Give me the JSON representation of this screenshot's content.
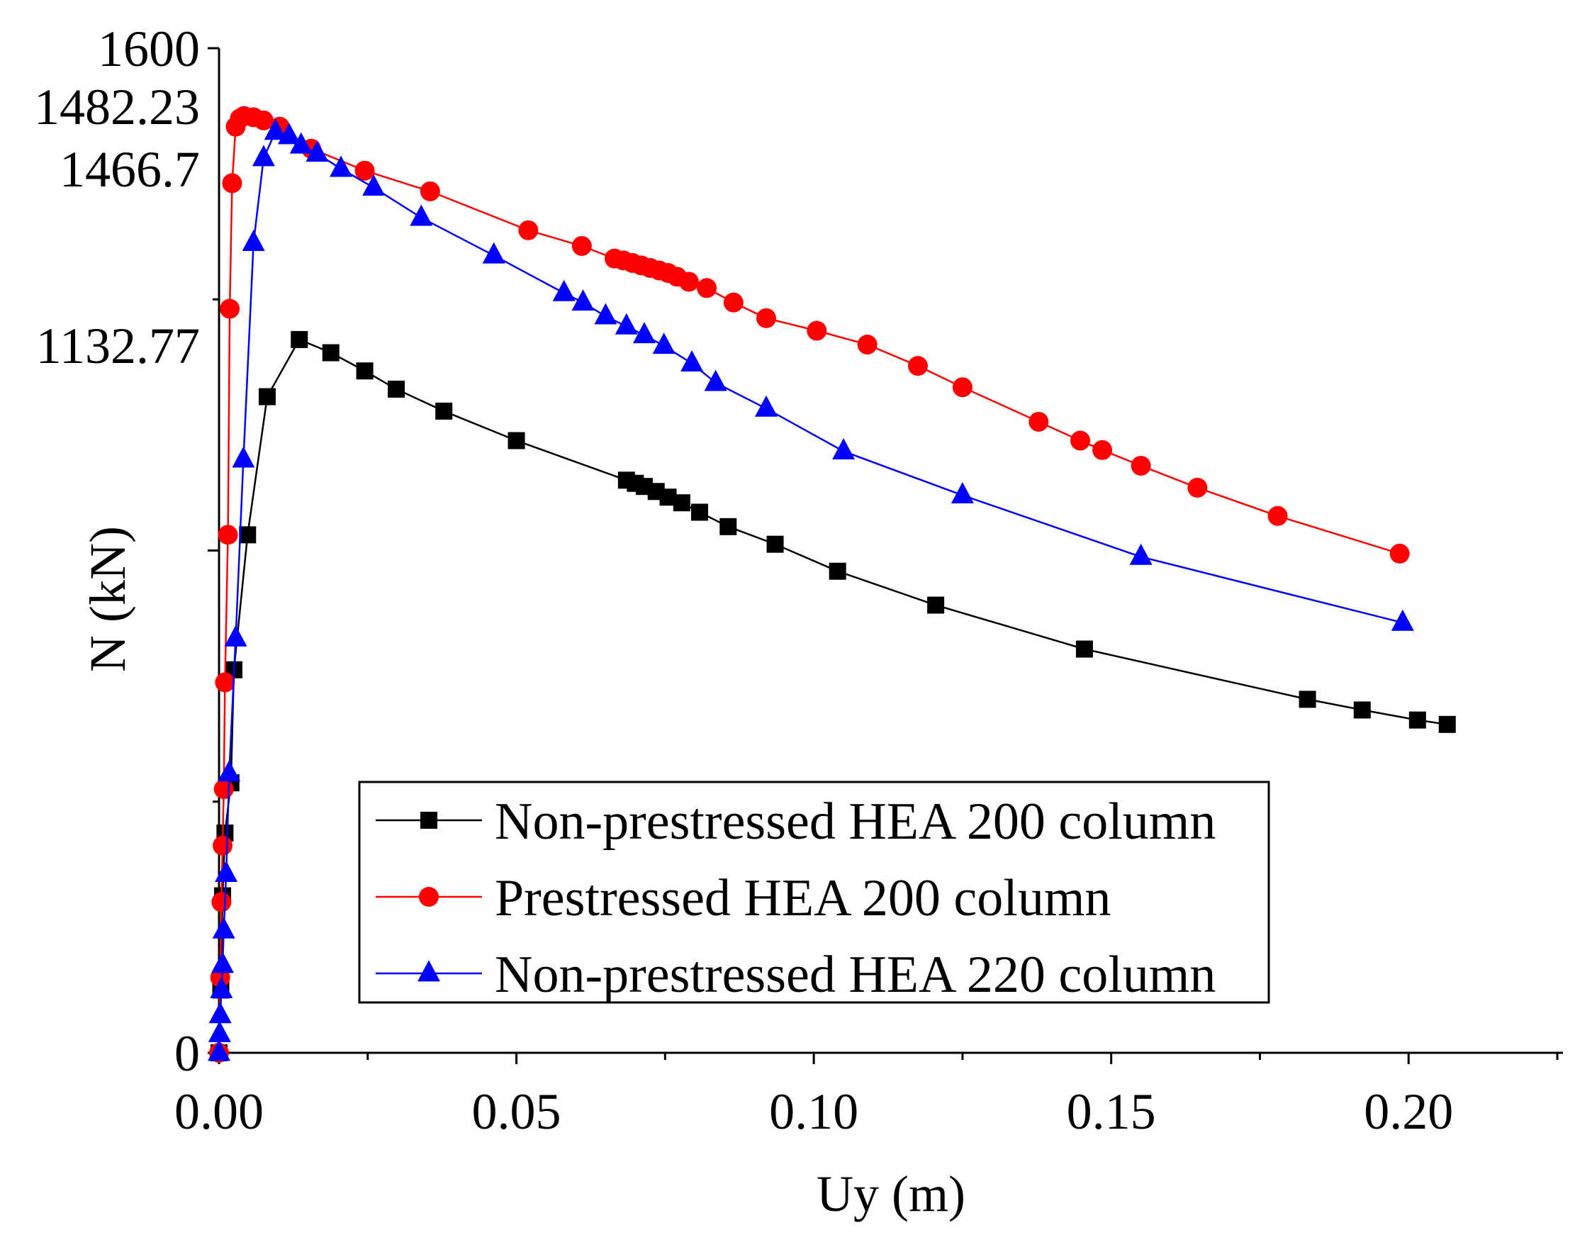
{
  "chart_data": {
    "type": "line",
    "title": "",
    "xlabel": "Uy (m)",
    "ylabel": "N (kN)",
    "xlim": [
      0,
      0.225
    ],
    "ylim": [
      0,
      1600
    ],
    "x_ticks": [
      0.0,
      0.05,
      0.1,
      0.15,
      0.2
    ],
    "x_tick_labels": [
      "0.00",
      "0.05",
      "0.10",
      "0.15",
      "0.20"
    ],
    "y_tick_labels": [
      {
        "value": 1600,
        "label": "1600",
        "color": "#000000"
      },
      {
        "value": 1482.23,
        "label": "1482.23",
        "color": "#ff0000"
      },
      {
        "value": 1466.7,
        "label": "1466.7",
        "color": "#0000ff"
      },
      {
        "value": 1132.77,
        "label": "1132.77",
        "color": "#000000"
      },
      {
        "value": 0,
        "label": "0",
        "color": "#000000"
      }
    ],
    "legend_position": "bottom-right",
    "series": [
      {
        "name": "Non-prestressed HEA 200 column",
        "color": "#000000",
        "marker": "square",
        "x": [
          0,
          0.0003,
          0.0006,
          0.001,
          0.002,
          0.0025,
          0.0048,
          0.0081,
          0.0135,
          0.0188,
          0.0245,
          0.0298,
          0.0378,
          0.05,
          0.0685,
          0.07,
          0.0715,
          0.0735,
          0.0755,
          0.0778,
          0.0808,
          0.0856,
          0.0935,
          0.104,
          0.1205,
          0.1455,
          0.183,
          0.1922,
          0.2015,
          0.2065
        ],
        "y": [
          0,
          100,
          250,
          350,
          430,
          610,
          825,
          1045,
          1136,
          1115,
          1086,
          1057,
          1022,
          975,
          912,
          907,
          902,
          894,
          885,
          876,
          861,
          838,
          810,
          767,
          713,
          643,
          563,
          546,
          530,
          523
        ]
      },
      {
        "name": "Prestressed HEA 200 column",
        "color": "#ff0000",
        "marker": "circle",
        "x": [
          0,
          0.0002,
          0.0004,
          0.0006,
          0.0008,
          0.001,
          0.0015,
          0.0018,
          0.0022,
          0.0028,
          0.0035,
          0.0042,
          0.0058,
          0.0075,
          0.0102,
          0.0155,
          0.0245,
          0.0355,
          0.052,
          0.061,
          0.0665,
          0.068,
          0.0695,
          0.071,
          0.0725,
          0.074,
          0.0755,
          0.077,
          0.079,
          0.082,
          0.0865,
          0.092,
          0.1005,
          0.109,
          0.1175,
          0.125,
          0.1378,
          0.1448,
          0.1485,
          0.155,
          0.1645,
          0.178,
          0.1985
        ],
        "y": [
          0,
          120,
          240,
          330,
          420,
          590,
          825,
          1185,
          1385,
          1475,
          1488,
          1492,
          1490,
          1485,
          1475,
          1440,
          1405,
          1372,
          1310,
          1285,
          1265,
          1262,
          1258,
          1254,
          1250,
          1246,
          1242,
          1236,
          1228,
          1218,
          1195,
          1170,
          1150,
          1128,
          1094,
          1060,
          1005,
          975,
          960,
          935,
          900,
          855,
          795
        ]
      },
      {
        "name": "Non-prestressed HEA 220 column",
        "color": "#0000ff",
        "marker": "triangle",
        "x": [
          0,
          0.0001,
          0.0002,
          0.0004,
          0.0006,
          0.0008,
          0.0012,
          0.0017,
          0.0028,
          0.0041,
          0.0058,
          0.0075,
          0.0095,
          0.0118,
          0.0138,
          0.0165,
          0.0205,
          0.026,
          0.034,
          0.0462,
          0.058,
          0.0612,
          0.065,
          0.0685,
          0.0715,
          0.0748,
          0.0795,
          0.0835,
          0.092,
          0.105,
          0.125,
          0.155,
          0.199
        ],
        "y": [
          0,
          30,
          60,
          100,
          140,
          195,
          285,
          445,
          660,
          945,
          1290,
          1425,
          1467,
          1460,
          1445,
          1432,
          1408,
          1378,
          1330,
          1270,
          1210,
          1195,
          1173,
          1157,
          1143,
          1126,
          1098,
          1067,
          1026,
          958,
          888,
          790,
          685
        ]
      }
    ]
  }
}
